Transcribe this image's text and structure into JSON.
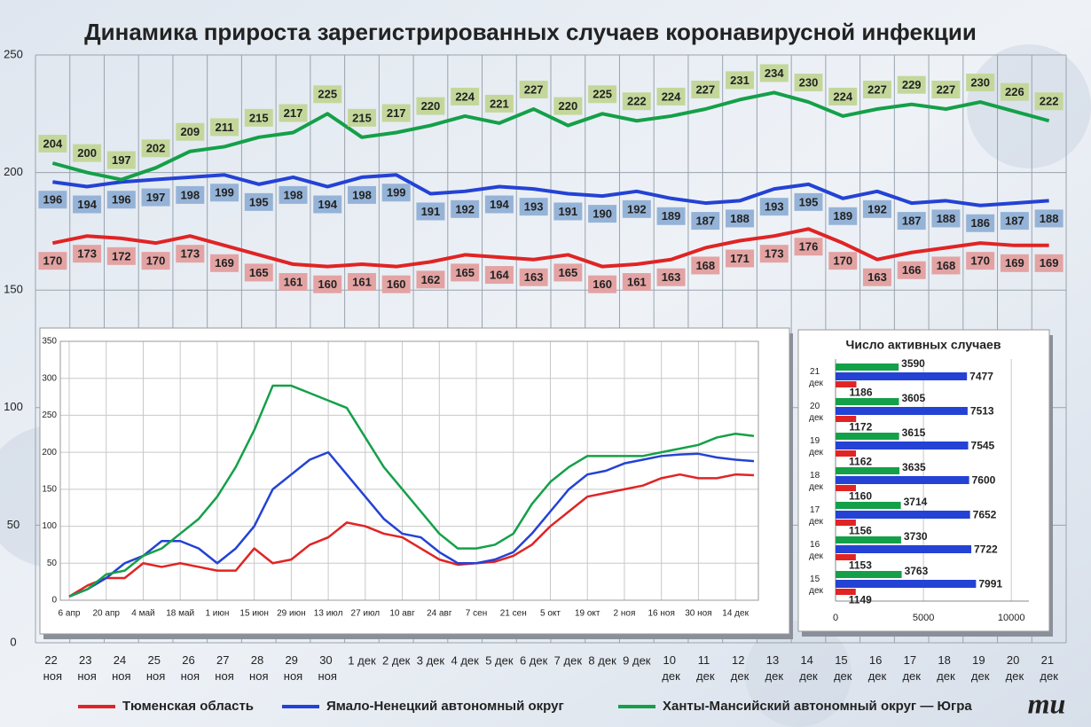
{
  "chart_data": [
    {
      "type": "line",
      "title": "Динамика прироста зарегистрированных случаев коронавирусной инфекции",
      "categories": [
        "22 ноя",
        "23 ноя",
        "24 ноя",
        "25 ноя",
        "26 ноя",
        "27 ноя",
        "28 ноя",
        "29 ноя",
        "30 ноя",
        "1 дек",
        "2 дек",
        "3 дек",
        "4 дек",
        "5 дек",
        "6 дек",
        "7 дек",
        "8 дек",
        "9 дек",
        "10 дек",
        "11 дек",
        "12 дек",
        "13 дек",
        "14 дек",
        "15 дек",
        "16 дек",
        "17 дек",
        "18 дек",
        "19 дек",
        "20 дек",
        "21 дек"
      ],
      "series": [
        {
          "name": "Тюменская область",
          "color": "#e02424",
          "values": [
            170,
            173,
            172,
            170,
            173,
            169,
            165,
            161,
            160,
            161,
            160,
            162,
            165,
            164,
            163,
            165,
            160,
            161,
            163,
            168,
            171,
            173,
            176,
            170,
            163,
            166,
            168,
            170,
            169,
            169
          ]
        },
        {
          "name": "Ямало-Ненецкий автономный округ",
          "color": "#2442d4",
          "values": [
            196,
            194,
            196,
            197,
            198,
            199,
            195,
            198,
            194,
            198,
            199,
            191,
            192,
            194,
            193,
            191,
            190,
            192,
            189,
            187,
            188,
            193,
            195,
            189,
            192,
            187,
            188,
            186,
            187,
            188
          ]
        },
        {
          "name": "Ханты-Мансийский автономный округ — Югра",
          "color": "#14a048",
          "values": [
            204,
            200,
            197,
            202,
            209,
            211,
            215,
            217,
            225,
            215,
            217,
            220,
            224,
            221,
            227,
            220,
            225,
            222,
            224,
            227,
            231,
            234,
            230,
            224,
            227,
            229,
            227,
            230,
            226,
            222
          ]
        }
      ],
      "ylim": [
        0,
        250
      ],
      "yticks": [
        0,
        50,
        100,
        150,
        200,
        250
      ],
      "grid": true
    },
    {
      "type": "line",
      "categories": [
        "6 апр",
        null,
        "20 апр",
        null,
        "4 май",
        null,
        "18 май",
        null,
        "1 июн",
        null,
        "15 июн",
        null,
        "29 июн",
        null,
        "13 июл",
        null,
        "27 июл",
        null,
        "10 авг",
        null,
        "24 авг",
        null,
        "7 сен",
        null,
        "21 сен",
        null,
        "5 окт",
        null,
        "19 окт",
        null,
        "2 ноя",
        null,
        "16 ноя",
        null,
        "30 ноя",
        null,
        "14 дек",
        null
      ],
      "series": [
        {
          "color": "#e02424",
          "values": [
            5,
            20,
            30,
            30,
            50,
            45,
            50,
            45,
            40,
            40,
            70,
            50,
            55,
            75,
            85,
            105,
            100,
            90,
            85,
            70,
            55,
            48,
            50,
            52,
            60,
            75,
            100,
            120,
            140,
            145,
            150,
            155,
            165,
            170,
            165,
            165,
            170,
            169
          ]
        },
        {
          "color": "#2442d4",
          "values": [
            5,
            15,
            30,
            50,
            60,
            80,
            80,
            70,
            50,
            70,
            100,
            150,
            170,
            190,
            200,
            170,
            140,
            110,
            90,
            85,
            65,
            50,
            50,
            55,
            65,
            90,
            120,
            150,
            170,
            175,
            185,
            190,
            195,
            197,
            198,
            193,
            190,
            188
          ]
        },
        {
          "color": "#14a048",
          "values": [
            5,
            15,
            35,
            40,
            60,
            70,
            90,
            110,
            140,
            180,
            230,
            290,
            290,
            280,
            270,
            260,
            220,
            180,
            150,
            120,
            90,
            70,
            70,
            75,
            90,
            130,
            160,
            180,
            195,
            195,
            195,
            195,
            200,
            205,
            210,
            220,
            225,
            222
          ]
        }
      ],
      "ylim": [
        0,
        350
      ],
      "yticks": [
        0,
        50,
        100,
        150,
        200,
        250,
        300,
        350
      ],
      "grid": true
    },
    {
      "type": "hbar",
      "title": "Число активных случаев",
      "categories": [
        "21 дек",
        "20 дек",
        "19 дек",
        "18 дек",
        "17 дек",
        "16 дек",
        "15 дек"
      ],
      "series": [
        {
          "color": "#14a048",
          "values": [
            3590,
            3605,
            3615,
            3635,
            3714,
            3730,
            3763
          ]
        },
        {
          "color": "#2442d4",
          "values": [
            7477,
            7513,
            7545,
            7600,
            7652,
            7722,
            7991
          ]
        },
        {
          "color": "#e02424",
          "values": [
            1186,
            1172,
            1162,
            1160,
            1156,
            1153,
            1149
          ]
        }
      ],
      "xlim": [
        0,
        11000
      ],
      "xticks": [
        0,
        5000,
        10000
      ],
      "grid": true
    }
  ],
  "logo": "mu"
}
